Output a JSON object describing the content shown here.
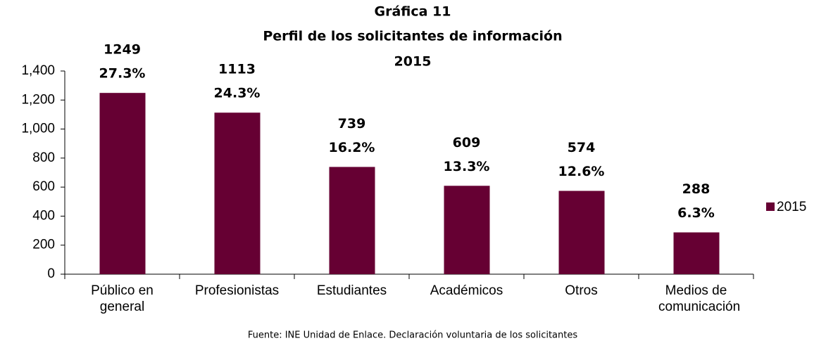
{
  "chart_data": {
    "type": "bar",
    "title": [
      "Gráfica 11",
      "Perfil de los solicitantes de información",
      "2015"
    ],
    "categories": [
      "Público en general",
      "Profesionistas",
      "Estudiantes",
      "Académicos",
      "Otros",
      "Medios de comunicación"
    ],
    "series": [
      {
        "name": "2015",
        "color": "#660033",
        "values": [
          1249,
          1113,
          739,
          609,
          574,
          288
        ],
        "percent_labels": [
          "27.3%",
          "24.3%",
          "16.2%",
          "13.3%",
          "12.6%",
          "6.3%"
        ]
      }
    ],
    "ylim": [
      0,
      1400
    ],
    "yticks": [
      0,
      200,
      400,
      600,
      800,
      {
        "value": 1000,
        "label": "1,000"
      },
      {
        "value": 1200,
        "label": "1,200"
      },
      {
        "value": 1400,
        "label": "1,400"
      }
    ],
    "grid": false,
    "legend": "right",
    "source": "Fuente: INE Unidad de Enlace. Declaración voluntaria de los solicitantes"
  }
}
